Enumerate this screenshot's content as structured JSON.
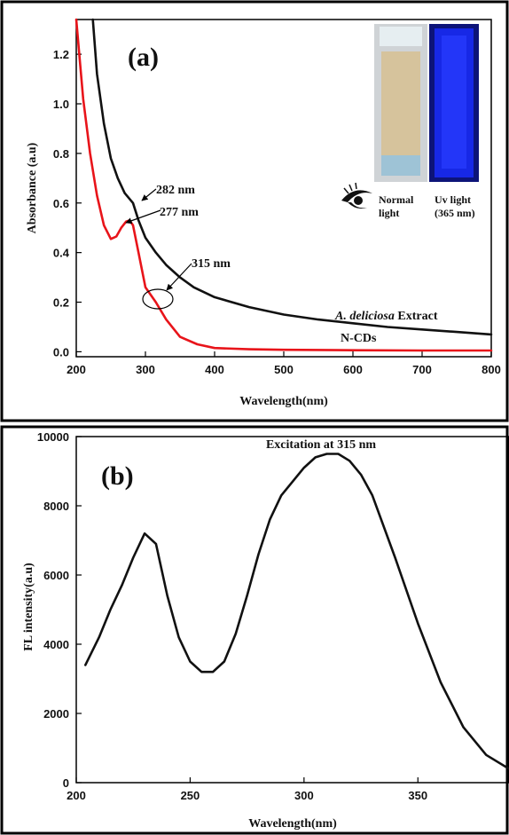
{
  "colors": {
    "panel_frame": "#000000",
    "extract_line": "#111111",
    "ncds_line": "#e8141a",
    "uv_vial": "#1020e0",
    "normal_vial": "#d8c7a0"
  },
  "chart_data": [
    {
      "type": "line",
      "panel_label": "(a)",
      "xlabel": "Wavelength(nm)",
      "ylabel": "Absorbance (a.u)",
      "xlim": [
        200,
        800
      ],
      "ylim": [
        -0.02,
        1.34
      ],
      "xticks": [
        200,
        300,
        400,
        500,
        600,
        700,
        800
      ],
      "yticks": [
        0.0,
        0.2,
        0.4,
        0.6,
        0.8,
        1.0,
        1.2
      ],
      "ytick_labels": [
        "0.0",
        "0.2",
        "0.4",
        "0.6",
        "0.8",
        "1.0",
        "1.2"
      ],
      "grid": false,
      "series": [
        {
          "name": "A. deliciosa Extract",
          "name_parts": [
            "A. deliciosa",
            " Extract"
          ],
          "color": "#111111",
          "x": [
            224,
            230,
            240,
            250,
            260,
            270,
            282,
            290,
            300,
            315,
            330,
            350,
            370,
            400,
            450,
            500,
            550,
            600,
            650,
            700,
            750,
            800
          ],
          "y": [
            1.34,
            1.12,
            0.92,
            0.78,
            0.7,
            0.64,
            0.6,
            0.53,
            0.46,
            0.4,
            0.35,
            0.3,
            0.26,
            0.22,
            0.18,
            0.15,
            0.13,
            0.115,
            0.1,
            0.09,
            0.08,
            0.07
          ]
        },
        {
          "name": "N-CDs",
          "color": "#e8141a",
          "x": [
            200,
            205,
            210,
            220,
            230,
            240,
            250,
            258,
            265,
            272,
            277,
            282,
            290,
            300,
            315,
            330,
            350,
            375,
            400,
            450,
            500,
            600,
            700,
            800
          ],
          "y": [
            1.34,
            1.18,
            1.02,
            0.8,
            0.63,
            0.51,
            0.455,
            0.465,
            0.5,
            0.525,
            0.53,
            0.51,
            0.4,
            0.26,
            0.2,
            0.13,
            0.06,
            0.03,
            0.015,
            0.01,
            0.008,
            0.006,
            0.005,
            0.005
          ]
        }
      ],
      "annotations": [
        {
          "text": "282 nm",
          "x": 282,
          "y": 0.6
        },
        {
          "text": "277 nm",
          "x": 277,
          "y": 0.53
        },
        {
          "text": "315 nm",
          "x": 315,
          "y": 0.2
        }
      ],
      "inset_photo": {
        "caption_left_lines": [
          "Normal",
          "light"
        ],
        "caption_right_lines": [
          "Uv light",
          "(365 nm)"
        ]
      }
    },
    {
      "type": "line",
      "panel_label": "(b)",
      "title": "Excitation at 315 nm",
      "xlabel": "Wavelength(nm)",
      "ylabel": "FL intensity(a.u)",
      "xlim": [
        200,
        390
      ],
      "ylim": [
        0,
        10000
      ],
      "xticks": [
        200,
        250,
        300,
        350
      ],
      "yticks": [
        0,
        2000,
        4000,
        6000,
        8000,
        10000
      ],
      "grid": false,
      "series": [
        {
          "color": "#111111",
          "x": [
            204,
            210,
            215,
            220,
            225,
            230,
            235,
            240,
            245,
            250,
            255,
            260,
            265,
            270,
            275,
            280,
            285,
            290,
            295,
            300,
            305,
            310,
            315,
            320,
            325,
            330,
            340,
            350,
            360,
            370,
            380,
            390
          ],
          "y": [
            3400,
            4200,
            5000,
            5700,
            6500,
            7200,
            6900,
            5400,
            4200,
            3500,
            3200,
            3200,
            3500,
            4300,
            5400,
            6600,
            7600,
            8300,
            8700,
            9100,
            9400,
            9500,
            9500,
            9300,
            8900,
            8300,
            6500,
            4600,
            2900,
            1600,
            800,
            400
          ]
        }
      ]
    }
  ]
}
